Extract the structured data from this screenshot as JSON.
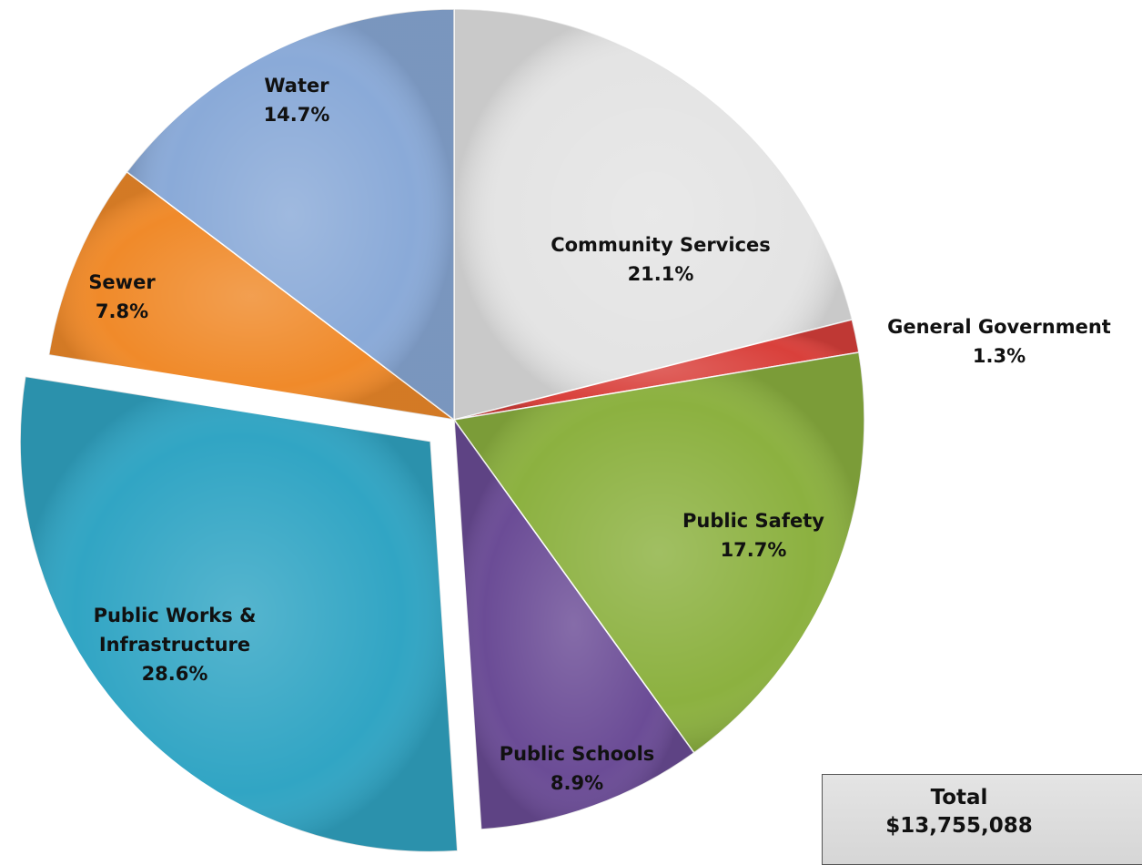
{
  "chart_data": {
    "type": "pie",
    "slices": [
      {
        "name": "Community Services",
        "value": 21.1,
        "label": "21.1%",
        "color": "#e4e4e4"
      },
      {
        "name": "General Government",
        "value": 1.3,
        "label": "1.3%",
        "color": "#d9403b"
      },
      {
        "name": "Public Safety",
        "value": 17.7,
        "label": "17.7%",
        "color": "#8cb140"
      },
      {
        "name": "Public Schools",
        "value": 8.9,
        "label": "8.9%",
        "color": "#6b4c96"
      },
      {
        "name": "Public Works &",
        "name_line2": "Infrastructure",
        "value": 28.6,
        "label": "28.6%",
        "color": "#31a5c4",
        "exploded": true
      },
      {
        "name": "Sewer",
        "value": 7.8,
        "label": "7.8%",
        "color": "#f08a2a"
      },
      {
        "name": "Water",
        "value": 14.7,
        "label": "14.7%",
        "color": "#8aaad8"
      }
    ],
    "start_angle": "12 o'clock",
    "direction": "clockwise",
    "legend": "none"
  },
  "total": {
    "label": "Total",
    "value": "$13,755,088"
  }
}
